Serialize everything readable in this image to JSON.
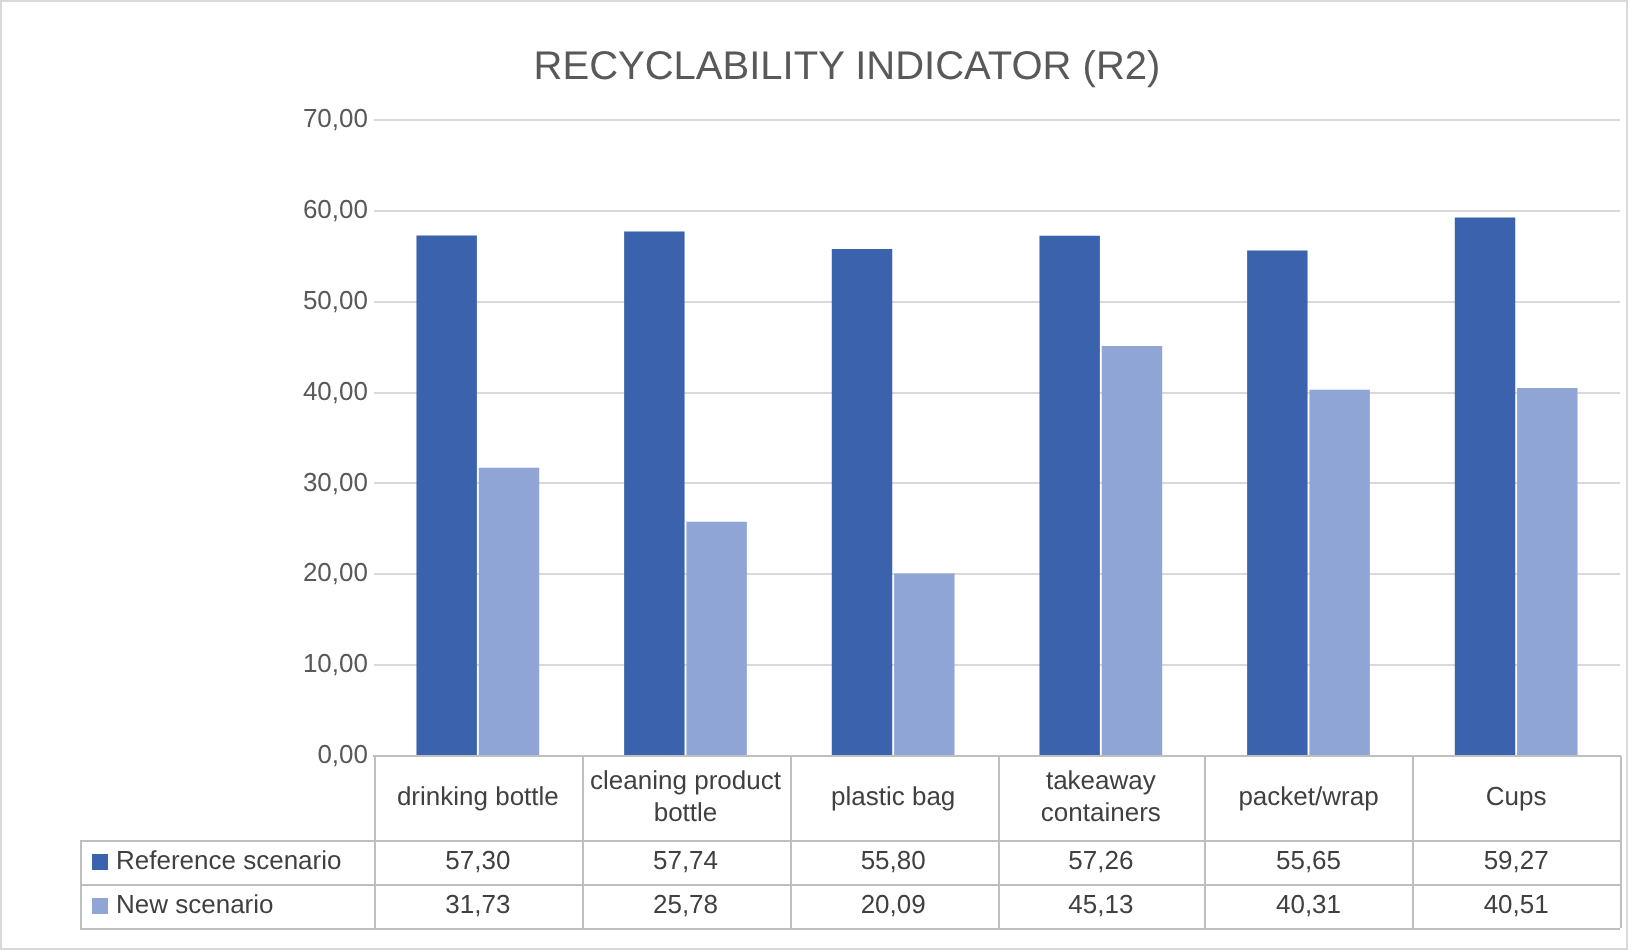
{
  "chart_data": {
    "type": "bar",
    "title": "RECYCLABILITY INDICATOR (R2)",
    "categories": [
      "drinking bottle",
      "cleaning product bottle",
      "plastic bag",
      "takeaway containers",
      "packet/wrap",
      "Cups"
    ],
    "series": [
      {
        "name": "Reference scenario",
        "color": "#3a62ad",
        "values": [
          57.3,
          57.74,
          55.8,
          57.26,
          55.65,
          59.27
        ],
        "value_labels": [
          "57,30",
          "57,74",
          "55,80",
          "57,26",
          "55,65",
          "59,27"
        ]
      },
      {
        "name": "New scenario",
        "color": "#8fa5d6",
        "values": [
          31.73,
          25.78,
          20.09,
          45.13,
          40.31,
          40.51
        ],
        "value_labels": [
          "31,73",
          "25,78",
          "20,09",
          "45,13",
          "40,31",
          "40,51"
        ]
      }
    ],
    "ylim": [
      0,
      70
    ],
    "yticks": [
      {
        "value": 0,
        "label": "0,00"
      },
      {
        "value": 10,
        "label": "10,00"
      },
      {
        "value": 20,
        "label": "20,00"
      },
      {
        "value": 30,
        "label": "30,00"
      },
      {
        "value": 40,
        "label": "40,00"
      },
      {
        "value": 50,
        "label": "50,00"
      },
      {
        "value": 60,
        "label": "60,00"
      },
      {
        "value": 70,
        "label": "70,00"
      }
    ],
    "grid": "y",
    "legend": "bottom"
  }
}
